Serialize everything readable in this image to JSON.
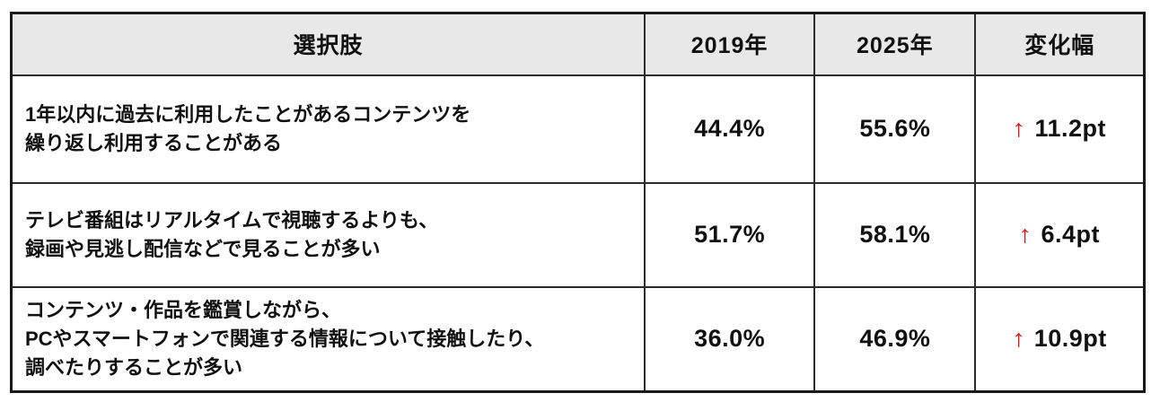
{
  "colors": {
    "accent_red": "#ee1111",
    "header_bg": "#e8e8e8",
    "border": "#2b2b2b",
    "text": "#111111"
  },
  "table": {
    "headers": {
      "choice": "選択肢",
      "y2019": "2019年",
      "y2025": "2025年",
      "change": "変化幅"
    },
    "up_arrow": "↑",
    "rows": [
      {
        "choice_lines": {
          "0": "1年以内に過去に利用したことがあるコンテンツを",
          "1": "繰り返し利用することがある"
        },
        "y2019": "44.4%",
        "y2025": "55.6%",
        "change": "11.2pt"
      },
      {
        "choice_lines": {
          "0": "テレビ番組はリアルタイムで視聴するよりも、",
          "1": "録画や見逃し配信などで見ることが多い"
        },
        "y2019": "51.7%",
        "y2025": "58.1%",
        "change": "6.4pt"
      },
      {
        "choice_lines": {
          "0": "コンテンツ・作品を鑑賞しながら、",
          "1": "PCやスマートフォンで関連する情報について接触したり、",
          "2": "調べたりすることが多い"
        },
        "y2019": "36.0%",
        "y2025": "46.9%",
        "change": "10.9pt"
      }
    ]
  },
  "chart_data": {
    "type": "table",
    "title": "",
    "columns": [
      "選択肢",
      "2019年",
      "2025年",
      "変化幅"
    ],
    "categories": [
      "1年以内に過去に利用したことがあるコンテンツを繰り返し利用することがある",
      "テレビ番組はリアルタイムで視聴するよりも、録画や見逃し配信などで見ることが多い",
      "コンテンツ・作品を鑑賞しながら、PCやスマートフォンで関連する情報について接触したり、調べたりすることが多い"
    ],
    "series": [
      {
        "name": "2019年",
        "values": [
          44.4,
          51.7,
          36.0
        ],
        "unit": "%"
      },
      {
        "name": "2025年",
        "values": [
          55.6,
          58.1,
          46.9
        ],
        "unit": "%"
      },
      {
        "name": "変化幅",
        "values": [
          11.2,
          6.4,
          10.9
        ],
        "unit": "pt",
        "direction": "up"
      }
    ]
  }
}
